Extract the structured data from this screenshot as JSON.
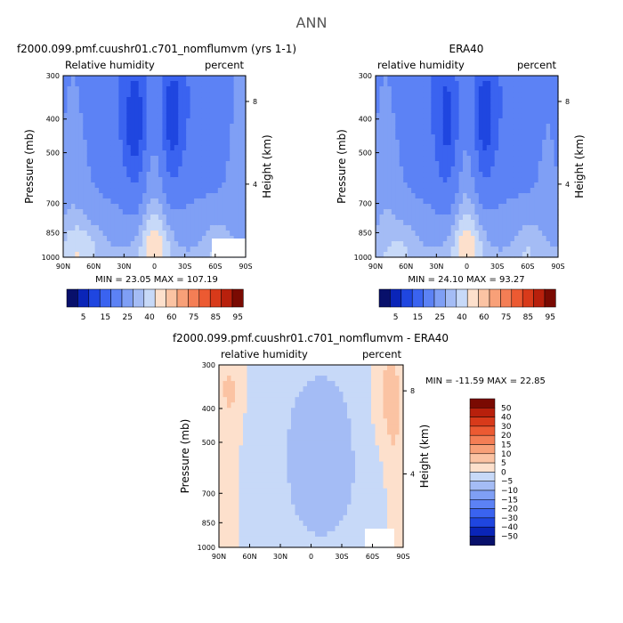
{
  "page_title": "ANN",
  "colors": {
    "blue": [
      "#08106b",
      "#0a25b8",
      "#1f46e0",
      "#3a63f0",
      "#5c82f5",
      "#7f9ff5",
      "#a4bcf5",
      "#c7d9f8"
    ],
    "red": [
      "#fde0cc",
      "#fbc3a3",
      "#f8a078",
      "#f47e55",
      "#ec5a32",
      "#d83a1a",
      "#b8200c",
      "#7a0a02"
    ],
    "near_zero": "#fbe9dc"
  },
  "chart_data": [
    {
      "type": "heatmap",
      "title": "f2000.099.pmf.cuushr01.c701_nomflumvm (yrs 1-1)",
      "variable_label": "Relative humidity",
      "units_label": "percent",
      "ylabel": "Pressure (mb)",
      "ylabel_right": "Height (km)",
      "x_ticks": [
        "90N",
        "60N",
        "30N",
        "0",
        "30S",
        "60S",
        "90S"
      ],
      "y_ticks": [
        "300",
        "400",
        "500",
        "700",
        "850",
        "1000"
      ],
      "y_right_ticks": [
        "8",
        "4"
      ],
      "min_max_text": "MIN =  23.05   MAX = 107.19",
      "min": 23.05,
      "max": 107.19,
      "levels": [
        5,
        15,
        25,
        40,
        60,
        75,
        85,
        95
      ],
      "colorbar_labels": [
        "5",
        "15",
        "25",
        "40",
        "60",
        "75",
        "85",
        "95"
      ]
    },
    {
      "type": "heatmap",
      "title": "ERA40",
      "variable_label": "relative humidity",
      "units_label": "percent",
      "ylabel": "Pressure (mb)",
      "ylabel_right": "Height (km)",
      "x_ticks": [
        "90N",
        "60N",
        "30N",
        "0",
        "30S",
        "60S",
        "90S"
      ],
      "y_ticks": [
        "300",
        "400",
        "500",
        "700",
        "850",
        "1000"
      ],
      "y_right_ticks": [
        "8",
        "4"
      ],
      "min_max_text": "MIN =  24.10   MAX =  93.27",
      "min": 24.1,
      "max": 93.27,
      "levels": [
        5,
        15,
        25,
        40,
        60,
        75,
        85,
        95
      ],
      "colorbar_labels": [
        "5",
        "15",
        "25",
        "40",
        "60",
        "75",
        "85",
        "95"
      ]
    },
    {
      "type": "heatmap",
      "title": "f2000.099.pmf.cuushr01.c701_nomflumvm - ERA40",
      "variable_label": "relative humidity",
      "units_label": "percent",
      "ylabel": "Pressure (mb)",
      "ylabel_right": "Height (km)",
      "x_ticks": [
        "90N",
        "60N",
        "30N",
        "0",
        "30S",
        "60S",
        "90S"
      ],
      "y_ticks": [
        "300",
        "400",
        "500",
        "700",
        "850",
        "1000"
      ],
      "y_right_ticks": [
        "8",
        "4"
      ],
      "min_max_text": "MIN = -11.59   MAX =  22.85",
      "min": -11.59,
      "max": 22.85,
      "levels": [
        -50,
        -40,
        -30,
        -20,
        -15,
        -10,
        -5,
        0,
        5,
        10,
        15,
        20,
        30,
        40,
        50
      ],
      "colorbar_labels": [
        "50",
        "40",
        "30",
        "20",
        "15",
        "10",
        "5",
        "0",
        "−5",
        "−10",
        "−15",
        "−20",
        "−30",
        "−40",
        "−50"
      ]
    }
  ]
}
